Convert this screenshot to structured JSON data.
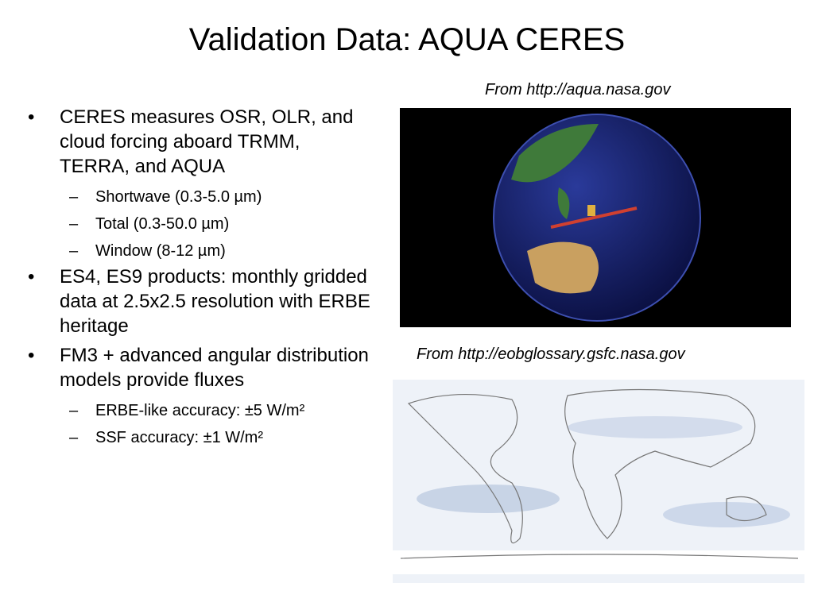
{
  "slide": {
    "title": "Validation Data: AQUA CERES",
    "bullets": [
      {
        "text": "CERES measures OSR, OLR, and cloud forcing aboard TRMM, TERRA, and AQUA",
        "sub": [
          "Shortwave (0.3-5.0 µm)",
          "Total (0.3-50.0 µm)",
          "Window (8-12 µm)"
        ]
      },
      {
        "text": "ES4, ES9 products: monthly gridded data at 2.5x2.5 resolution with ERBE heritage",
        "sub": []
      },
      {
        "text": "FM3 + advanced angular distribution models provide fluxes",
        "sub": [
          "ERBE-like accuracy: ±5 W/m²",
          "SSF accuracy: ±1 W/m²"
        ]
      }
    ],
    "caption_top": "From http://aqua.nasa.gov",
    "caption_bottom": "From http://eobglossary.gsfc.nasa.gov"
  }
}
